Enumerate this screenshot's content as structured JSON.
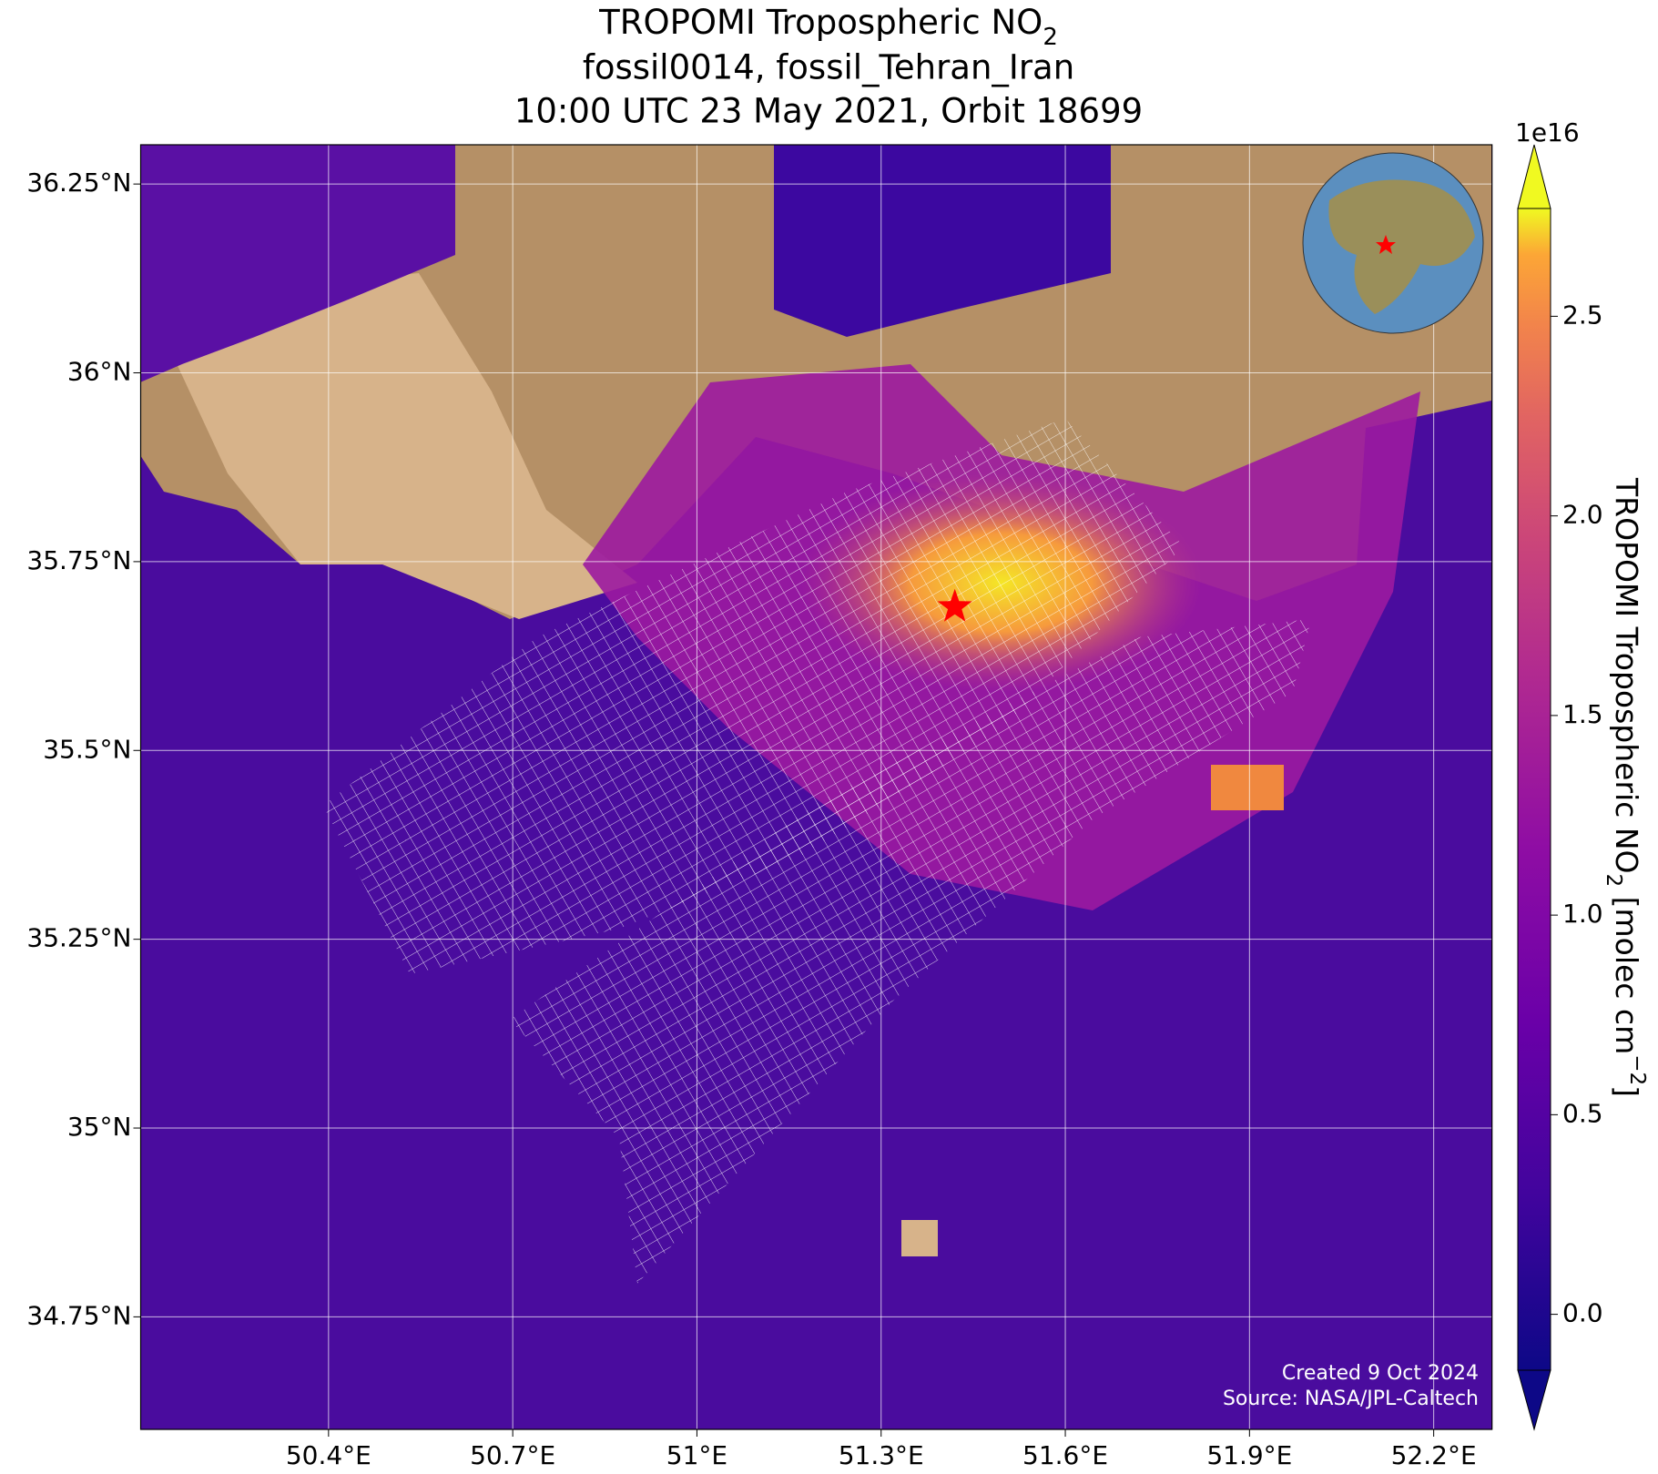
{
  "title": {
    "line1": "TROPOMI Tropospheric NO",
    "line1_sub": "2",
    "line2": "fossil0014, fossil_Tehran_Iran",
    "line3": "10:00 UTC 23 May 2021, Orbit 18699"
  },
  "map": {
    "lonlim": [
      50.094,
      52.295
    ],
    "latlim": [
      34.601,
      36.302
    ],
    "lonticks": [
      {
        "value": 50.4,
        "label": "50.4°E"
      },
      {
        "value": 50.7,
        "label": "50.7°E"
      },
      {
        "value": 51,
        "label": "51°E"
      },
      {
        "value": 51.3,
        "label": "51.3°E"
      },
      {
        "value": 51.6,
        "label": "51.6°E"
      },
      {
        "value": 51.9,
        "label": "51.9°E"
      },
      {
        "value": 52.2,
        "label": "52.2°E"
      }
    ],
    "latticks": [
      {
        "value": 36.25,
        "label": "36.25°N"
      },
      {
        "value": 36,
        "label": "36°N"
      },
      {
        "value": 35.75,
        "label": "35.75°N"
      },
      {
        "value": 35.5,
        "label": "35.5°N"
      },
      {
        "value": 35.25,
        "label": "35.25°N"
      },
      {
        "value": 35,
        "label": "35°N"
      },
      {
        "value": 34.75,
        "label": "34.75°N"
      }
    ],
    "grid": true,
    "marker": {
      "lon": 51.42,
      "lat": 35.69,
      "color": "#ff0000"
    }
  },
  "colorbar": {
    "label": "TROPOMI Tropospheric NO",
    "label_sub": "2",
    "label_unit": " [molec cm",
    "label_sup": "−2",
    "label_end": "]",
    "offset": "1e16",
    "lim": [
      -0.14,
      2.77
    ],
    "ticks": [
      {
        "value": 0,
        "label": "0.0"
      },
      0.5,
      {
        "value": 1,
        "label": "1.0"
      },
      1.5,
      {
        "value": 2,
        "label": "2.0"
      },
      2.5
    ]
  },
  "footer": {
    "created": "Created 9 Oct 2024",
    "source": "Source: NASA/JPL-Caltech"
  }
}
